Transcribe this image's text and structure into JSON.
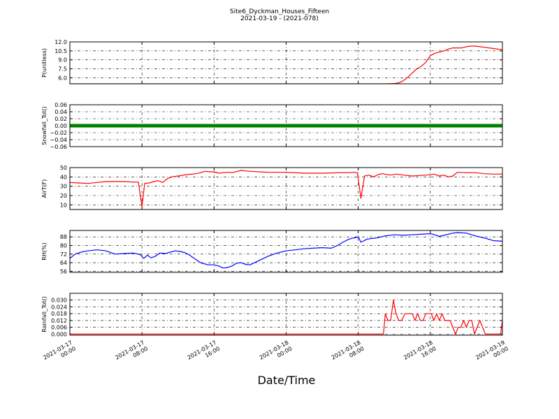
{
  "title": "Site6_Dyckman_Houses_Fifteen",
  "subtitle": "2021-03-19 - (2021-078)",
  "xlabel": "Date/Time",
  "x_ticks": [
    {
      "value": 0,
      "line1": "2021-03-17",
      "line2": "00:00"
    },
    {
      "value": 8,
      "line1": "2021-03-17",
      "line2": "08:00"
    },
    {
      "value": 16,
      "line1": "2021-03-17",
      "line2": "16:00"
    },
    {
      "value": 24,
      "line1": "2021-03-18",
      "line2": "00:00"
    },
    {
      "value": 32,
      "line1": "2021-03-18",
      "line2": "08:00"
    },
    {
      "value": 40,
      "line1": "2021-03-18",
      "line2": "16:00"
    },
    {
      "value": 48,
      "line1": "2021-03-19",
      "line2": "00:00"
    }
  ],
  "chart_data": [
    {
      "type": "line",
      "ylabel": "P(unitless)",
      "color": "#ff0000",
      "xlim": [
        0,
        48
      ],
      "ylim": [
        5.0,
        12.0
      ],
      "yticks": [
        "12.0",
        "10.5",
        "9.0",
        "7.5",
        "6.0"
      ],
      "ytick_values": [
        12.0,
        10.5,
        9.0,
        7.5,
        6.0
      ],
      "x": [
        0,
        5,
        10,
        15,
        20,
        25,
        30,
        35,
        36,
        36.5,
        37,
        37.5,
        38,
        38.5,
        39,
        39.5,
        40,
        40.5,
        41,
        41.5,
        42,
        42.5,
        43,
        43.5,
        44,
        44.5,
        45,
        45.5,
        46,
        46.5,
        47,
        47.5,
        48
      ],
      "y": [
        5.0,
        5.0,
        5.0,
        5.0,
        5.0,
        5.0,
        5.0,
        5.0,
        5.05,
        5.15,
        5.5,
        6.1,
        6.8,
        7.5,
        7.9,
        8.6,
        9.7,
        10.1,
        10.3,
        10.5,
        10.8,
        11.0,
        11.0,
        11.0,
        11.2,
        11.3,
        11.3,
        11.2,
        11.1,
        11.0,
        10.9,
        10.8,
        10.7
      ]
    },
    {
      "type": "line",
      "ylabel": "Snowfall_Tot()",
      "color": "#008000",
      "xlim": [
        0,
        48
      ],
      "ylim": [
        -0.06,
        0.06
      ],
      "yticks": [
        "0.06",
        "0.04",
        "0.02",
        "0.00",
        "−0.02",
        "−0.04",
        "−0.06"
      ],
      "ytick_values": [
        0.06,
        0.04,
        0.02,
        0.0,
        -0.02,
        -0.04,
        -0.06
      ],
      "x": [
        0,
        48
      ],
      "y": [
        0.0,
        0.0
      ]
    },
    {
      "type": "line",
      "ylabel": "AirT(F)",
      "color": "#ff0000",
      "xlim": [
        0,
        48
      ],
      "ylim": [
        5,
        50
      ],
      "yticks": [
        "50",
        "40",
        "30",
        "20",
        "10"
      ],
      "ytick_values": [
        50,
        40,
        30,
        20,
        10
      ],
      "x": [
        0,
        1,
        2,
        3,
        4,
        5,
        6,
        7,
        7.6,
        8.0,
        8.3,
        8.8,
        9.3,
        9.8,
        10.3,
        10.8,
        11.3,
        12,
        13,
        14,
        14.5,
        15,
        15.5,
        16,
        16.5,
        17,
        17.5,
        18,
        19,
        20,
        22,
        24,
        26,
        28,
        30,
        31,
        31.5,
        31.9,
        32.3,
        32.7,
        33.2,
        33.7,
        34.2,
        34.7,
        35.5,
        36.3,
        37,
        38,
        38.8,
        39.6,
        40.4,
        41,
        41.5,
        42,
        42.5,
        43,
        44,
        45,
        46,
        47,
        48
      ],
      "y": [
        34,
        33.5,
        33,
        34,
        35,
        35,
        35,
        34.5,
        34.5,
        8,
        33,
        33.5,
        35,
        36,
        34,
        38,
        40,
        41,
        42.5,
        43.5,
        44.5,
        46,
        45.5,
        45.5,
        44,
        44.5,
        45,
        44.5,
        47,
        46,
        45,
        45,
        44,
        44,
        44.5,
        44.5,
        45,
        44.5,
        17,
        41,
        42,
        40,
        42.5,
        43.5,
        42,
        43,
        42,
        41,
        41.5,
        42,
        43,
        41,
        42,
        40,
        41,
        45,
        44.5,
        44.5,
        43.5,
        43,
        43
      ]
    },
    {
      "type": "line",
      "ylabel": "RH(%)",
      "color": "#0000ff",
      "xlim": [
        0,
        48
      ],
      "ylim": [
        55,
        94
      ],
      "yticks": [
        "88",
        "80",
        "72",
        "64",
        "56"
      ],
      "ytick_values": [
        88,
        80,
        72,
        64,
        56
      ],
      "x": [
        0,
        0.6,
        1.3,
        2,
        3,
        4,
        5,
        6,
        7,
        7.8,
        8.2,
        8.6,
        9,
        9.5,
        10,
        10.6,
        11.2,
        11.7,
        12.2,
        12.7,
        13.2,
        13.8,
        14.5,
        15.3,
        16,
        16.5,
        17,
        17.5,
        18,
        18.5,
        19,
        19.5,
        20,
        21,
        22,
        23,
        24,
        25,
        26,
        27,
        28,
        29,
        29.7,
        30.3,
        31,
        31.5,
        32,
        32.3,
        33,
        34,
        35,
        36,
        37,
        38,
        39,
        40,
        40.5,
        41,
        42,
        42.5,
        43,
        44,
        45,
        46,
        47,
        48
      ],
      "y": [
        68,
        72,
        74,
        75,
        76,
        75,
        72,
        72.5,
        73,
        71.5,
        68,
        71,
        68.5,
        70,
        73,
        72.5,
        74,
        75,
        74.5,
        73.5,
        71.5,
        68,
        64,
        62,
        62,
        61,
        59,
        59.5,
        61,
        63.5,
        64,
        62.5,
        62,
        66,
        70,
        73,
        75,
        76,
        77,
        77.5,
        78,
        77.5,
        80,
        83,
        86,
        87,
        88,
        83,
        86,
        87,
        89,
        90,
        89.5,
        90,
        90.5,
        91,
        90,
        88.5,
        90.5,
        91.5,
        92,
        91.5,
        89,
        87,
        84.5,
        84
      ]
    },
    {
      "type": "line",
      "ylabel": "Rainfall_Tot()",
      "color": "#ff0000",
      "xlim": [
        0,
        48
      ],
      "ylim": [
        -0.001,
        0.036
      ],
      "yticks": [
        "0.030",
        "0.024",
        "0.018",
        "0.012",
        "0.006",
        "0.000"
      ],
      "ytick_values": [
        0.03,
        0.024,
        0.018,
        0.012,
        0.006,
        0.0
      ],
      "x": [
        0,
        34.8,
        35.0,
        35.3,
        35.6,
        35.9,
        36.2,
        36.5,
        36.8,
        37.2,
        37.6,
        38.0,
        38.3,
        38.6,
        38.9,
        39.2,
        39.5,
        39.8,
        40.1,
        40.4,
        40.7,
        41.0,
        41.3,
        41.6,
        41.9,
        42.2,
        42.5,
        42.8,
        43.1,
        43.4,
        43.7,
        44.0,
        44.3,
        44.6,
        44.9,
        45.2,
        45.5,
        45.8,
        46.1,
        46.4,
        46.7,
        47,
        47.5,
        47.8,
        48
      ],
      "y": [
        0,
        0,
        0.018,
        0.012,
        0.012,
        0.03,
        0.018,
        0.012,
        0.012,
        0.018,
        0.018,
        0.018,
        0.012,
        0.018,
        0.012,
        0.012,
        0.018,
        0.018,
        0.018,
        0.012,
        0.018,
        0.012,
        0.018,
        0.012,
        0.012,
        0.012,
        0.006,
        0.0,
        0.006,
        0.006,
        0.012,
        0.006,
        0.012,
        0.012,
        0.0,
        0.006,
        0.012,
        0.006,
        0.0,
        0.0,
        0.0,
        0,
        0,
        0,
        0.012
      ]
    }
  ]
}
